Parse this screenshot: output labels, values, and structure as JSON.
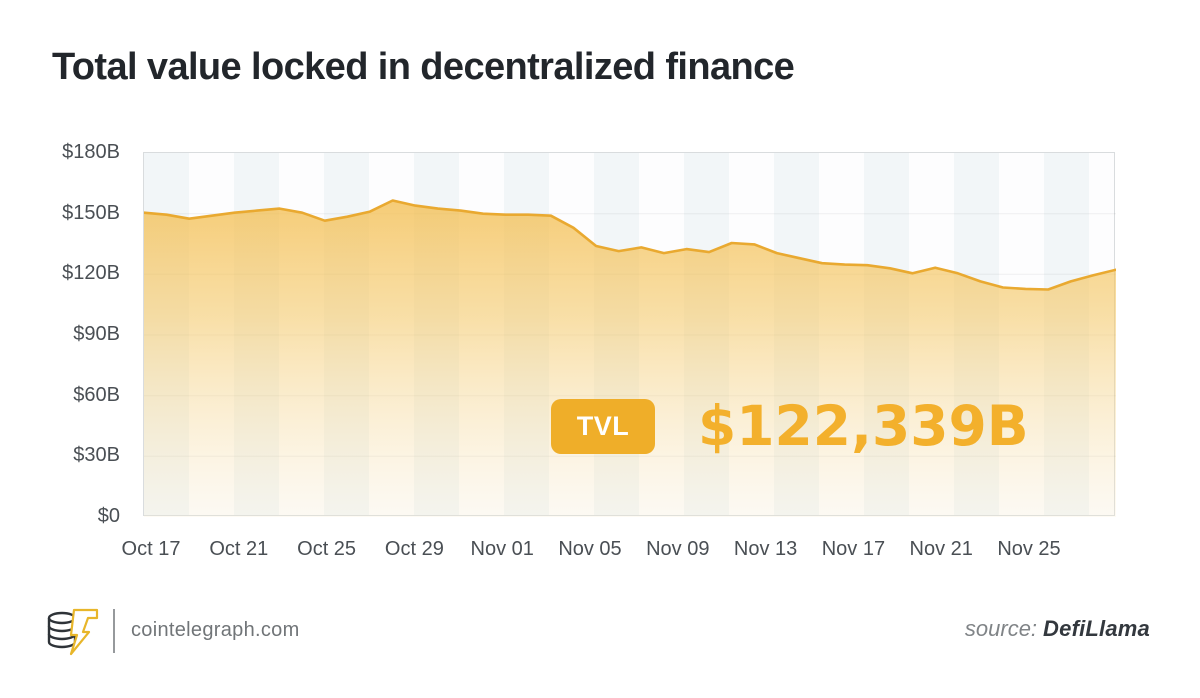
{
  "page": {
    "title": "Total value locked in decentralized finance"
  },
  "chart_data": {
    "type": "area",
    "title": "Total value locked in decentralized finance",
    "unit": "USD billions (B)",
    "x": [
      "Oct 16",
      "Oct 17",
      "Oct 18",
      "Oct 19",
      "Oct 20",
      "Oct 21",
      "Oct 22",
      "Oct 23",
      "Oct 24",
      "Oct 25",
      "Oct 26",
      "Oct 27",
      "Oct 28",
      "Oct 29",
      "Oct 30",
      "Oct 31",
      "Nov 01",
      "Nov 02",
      "Nov 03",
      "Nov 04",
      "Nov 05",
      "Nov 06",
      "Nov 07",
      "Nov 08",
      "Nov 09",
      "Nov 10",
      "Nov 11",
      "Nov 12",
      "Nov 13",
      "Nov 14",
      "Nov 15",
      "Nov 16",
      "Nov 17",
      "Nov 18",
      "Nov 19",
      "Nov 20",
      "Nov 21",
      "Nov 22",
      "Nov 23",
      "Nov 24",
      "Nov 25",
      "Nov 26",
      "Nov 27",
      "Nov 28"
    ],
    "values": [
      150.5,
      149.5,
      147.5,
      149,
      150.5,
      151.5,
      152.5,
      150.5,
      146.5,
      148.5,
      151,
      156.5,
      154,
      152.5,
      151.5,
      150,
      149.5,
      149.5,
      149,
      143,
      134,
      131.5,
      133.3,
      130.5,
      132.5,
      131,
      135.5,
      134.8,
      130.5,
      128,
      125.5,
      124.8,
      124.5,
      123,
      120.5,
      123.3,
      120.5,
      116.5,
      113.5,
      112.8,
      112.5,
      116.5,
      119.5,
      122.3
    ],
    "x_tick_labels": [
      "Oct 17",
      "Oct 21",
      "Oct 25",
      "Oct 29",
      "Nov 01",
      "Nov 05",
      "Nov 09",
      "Nov 13",
      "Nov 17",
      "Nov 21",
      "Nov 25"
    ],
    "y_ticks": [
      180,
      150,
      120,
      90,
      60,
      30,
      0
    ],
    "y_tick_labels": [
      "$180B",
      "$150B",
      "$120B",
      "$90B",
      "$60B",
      "$30B",
      "$0"
    ],
    "ylim": [
      0,
      180
    ],
    "grid": "horizontal gridlines every 30B; alternating vertical background bands",
    "legend_position": "none",
    "line_color": "#e9a930",
    "area_top_color": "#f3b945",
    "last_value": 122.339,
    "last_value_label": "$122,339B"
  },
  "overlay": {
    "badge": "TVL",
    "value": "$122,339B"
  },
  "footer": {
    "site": "cointelegraph.com",
    "source_label": "source:",
    "source_name": "DefiLlama"
  },
  "icons": {
    "logo": "cointelegraph-coin-stack-lightning"
  },
  "colors": {
    "accent_gold": "#efae29",
    "line": "#e9a930",
    "title_text": "#22262b",
    "axis_text": "#4a4f54",
    "band_tint": "#f2f6f8"
  }
}
